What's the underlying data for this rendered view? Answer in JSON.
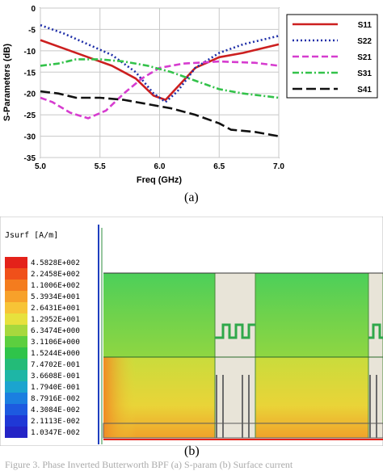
{
  "chart_data": {
    "type": "line",
    "xlabel": "Freq (GHz)",
    "ylabel": "S-Parameters (dB)",
    "xlim": [
      5.0,
      7.0
    ],
    "ylim": [
      -35,
      0
    ],
    "xticks": [
      "5.0",
      "5.5",
      "6.0",
      "6.5",
      "7.0"
    ],
    "yticks": [
      "0",
      "-5",
      "-10",
      "-15",
      "-20",
      "-25",
      "-30",
      "-35"
    ],
    "grid": true,
    "legend_position": "right",
    "series": [
      {
        "name": "S11",
        "color": "#cc1f1f",
        "dash": "solid",
        "x": [
          5.0,
          5.2,
          5.4,
          5.6,
          5.8,
          5.95,
          6.05,
          6.15,
          6.3,
          6.5,
          6.7,
          7.0
        ],
        "y": [
          -7.5,
          -9.5,
          -11.5,
          -13.5,
          -16.5,
          -20.5,
          -21.5,
          -18.5,
          -14.0,
          -11.5,
          -10.5,
          -8.5
        ]
      },
      {
        "name": "S22",
        "color": "#1f2fa8",
        "dash": "dot",
        "x": [
          5.0,
          5.2,
          5.4,
          5.6,
          5.8,
          5.95,
          6.05,
          6.15,
          6.3,
          6.5,
          6.7,
          7.0
        ],
        "y": [
          -4.0,
          -6.0,
          -8.5,
          -11.0,
          -15.0,
          -20.0,
          -22.0,
          -19.5,
          -14.0,
          -10.5,
          -8.5,
          -6.5
        ]
      },
      {
        "name": "S21",
        "color": "#d63ccf",
        "dash": "dash",
        "x": [
          5.0,
          5.1,
          5.25,
          5.4,
          5.55,
          5.7,
          5.85,
          6.0,
          6.2,
          6.5,
          6.8,
          7.0
        ],
        "y": [
          -21.0,
          -22.0,
          -24.5,
          -25.8,
          -24.0,
          -20.0,
          -16.5,
          -14.0,
          -13.0,
          -12.5,
          -12.8,
          -13.5
        ]
      },
      {
        "name": "S31",
        "color": "#33c24a",
        "dash": "dashdot",
        "x": [
          5.0,
          5.15,
          5.3,
          5.5,
          5.7,
          5.9,
          6.1,
          6.3,
          6.5,
          6.7,
          7.0
        ],
        "y": [
          -13.5,
          -13.0,
          -12.0,
          -12.0,
          -12.5,
          -13.5,
          -15.0,
          -17.0,
          -19.0,
          -20.0,
          -21.0
        ]
      },
      {
        "name": "S41",
        "color": "#111111",
        "dash": "longdash",
        "x": [
          5.0,
          5.15,
          5.3,
          5.5,
          5.7,
          5.9,
          6.1,
          6.3,
          6.5,
          6.6,
          6.8,
          7.0
        ],
        "y": [
          -19.5,
          -20.0,
          -21.0,
          -21.0,
          -21.5,
          -22.5,
          -23.5,
          -25.0,
          -27.0,
          -28.5,
          -29.0,
          -30.0
        ]
      }
    ]
  },
  "captions": {
    "a": "(a)",
    "b": "(b)"
  },
  "figure_b": {
    "colorbar_title": "Jsurf [A/m]",
    "colorbar": [
      {
        "label": "4.5828E+002",
        "color": "#e4221a"
      },
      {
        "label": "2.2458E+002",
        "color": "#f0501a"
      },
      {
        "label": "1.1006E+002",
        "color": "#f47c1e"
      },
      {
        "label": "5.3934E+001",
        "color": "#f7a12a"
      },
      {
        "label": "2.6431E+001",
        "color": "#f7c436"
      },
      {
        "label": "1.2952E+001",
        "color": "#e7e13d"
      },
      {
        "label": "6.3474E+000",
        "color": "#a7d83d"
      },
      {
        "label": "3.1106E+000",
        "color": "#5ccf3f"
      },
      {
        "label": "1.5244E+000",
        "color": "#2fc44a"
      },
      {
        "label": "7.4702E-001",
        "color": "#23bb78"
      },
      {
        "label": "3.6608E-001",
        "color": "#1eb6a6"
      },
      {
        "label": "1.7940E-001",
        "color": "#1ba4cf"
      },
      {
        "label": "8.7916E-002",
        "color": "#1b7fe0"
      },
      {
        "label": "4.3084E-002",
        "color": "#1d5ae0"
      },
      {
        "label": "2.1113E-002",
        "color": "#1f38d6"
      },
      {
        "label": "1.0347E-002",
        "color": "#2424c6"
      }
    ]
  },
  "footer_text": "Figure 3. Phase Inverted Butterworth BPF (a) S-param (b) Surface current"
}
